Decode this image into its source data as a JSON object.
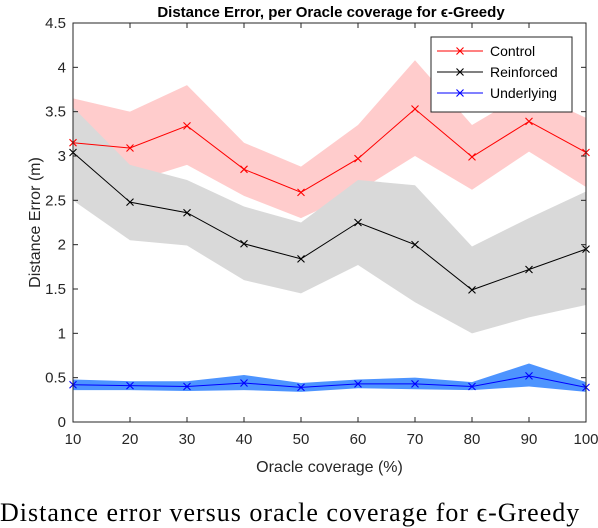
{
  "chart_data": {
    "type": "line",
    "title": "Distance Error, per Oracle coverage for ϵ-Greedy",
    "xlabel": "Oracle coverage (%)",
    "ylabel": "Distance Error (m)",
    "x": [
      10,
      20,
      30,
      40,
      50,
      60,
      70,
      80,
      90,
      100
    ],
    "xlim": [
      10,
      100
    ],
    "ylim": [
      0,
      4.5
    ],
    "xticks": [
      "10",
      "20",
      "30",
      "40",
      "50",
      "60",
      "70",
      "80",
      "90",
      "100"
    ],
    "yticks": [
      "0",
      "0.5",
      "1",
      "1.5",
      "2",
      "2.5",
      "3",
      "3.5",
      "4",
      "4.5"
    ],
    "grid": false,
    "legend_position": "top-right",
    "series": [
      {
        "name": "Control",
        "color": "#ff0000",
        "band_color": "#ffcccc",
        "values": [
          3.15,
          3.09,
          3.34,
          2.85,
          2.59,
          2.97,
          3.53,
          2.99,
          3.39,
          3.04
        ],
        "upper": [
          3.65,
          3.5,
          3.8,
          3.15,
          2.88,
          3.35,
          4.08,
          3.35,
          3.73,
          3.43
        ],
        "lower": [
          2.68,
          2.7,
          2.9,
          2.55,
          2.3,
          2.6,
          3.0,
          2.62,
          3.05,
          2.65
        ]
      },
      {
        "name": "Reinforced",
        "color": "#000000",
        "band_color": "#d9d9d9",
        "values": [
          3.04,
          2.48,
          2.36,
          2.01,
          1.84,
          2.25,
          2.0,
          1.49,
          1.72,
          1.95
        ],
        "upper": [
          3.55,
          2.9,
          2.73,
          2.43,
          2.25,
          2.73,
          2.67,
          1.98,
          2.3,
          2.6
        ],
        "lower": [
          2.5,
          2.05,
          1.99,
          1.6,
          1.45,
          1.77,
          1.35,
          1.0,
          1.18,
          1.32
        ]
      },
      {
        "name": "Underlying",
        "color": "#0000ff",
        "band_color": "#4d94ff",
        "values": [
          0.42,
          0.41,
          0.4,
          0.44,
          0.39,
          0.43,
          0.43,
          0.4,
          0.52,
          0.39
        ],
        "upper": [
          0.48,
          0.46,
          0.46,
          0.53,
          0.44,
          0.48,
          0.5,
          0.45,
          0.66,
          0.45
        ],
        "lower": [
          0.36,
          0.36,
          0.35,
          0.36,
          0.34,
          0.38,
          0.37,
          0.36,
          0.4,
          0.34
        ]
      }
    ]
  },
  "caption": "Distance error versus oracle coverage for ϵ-Greedy"
}
